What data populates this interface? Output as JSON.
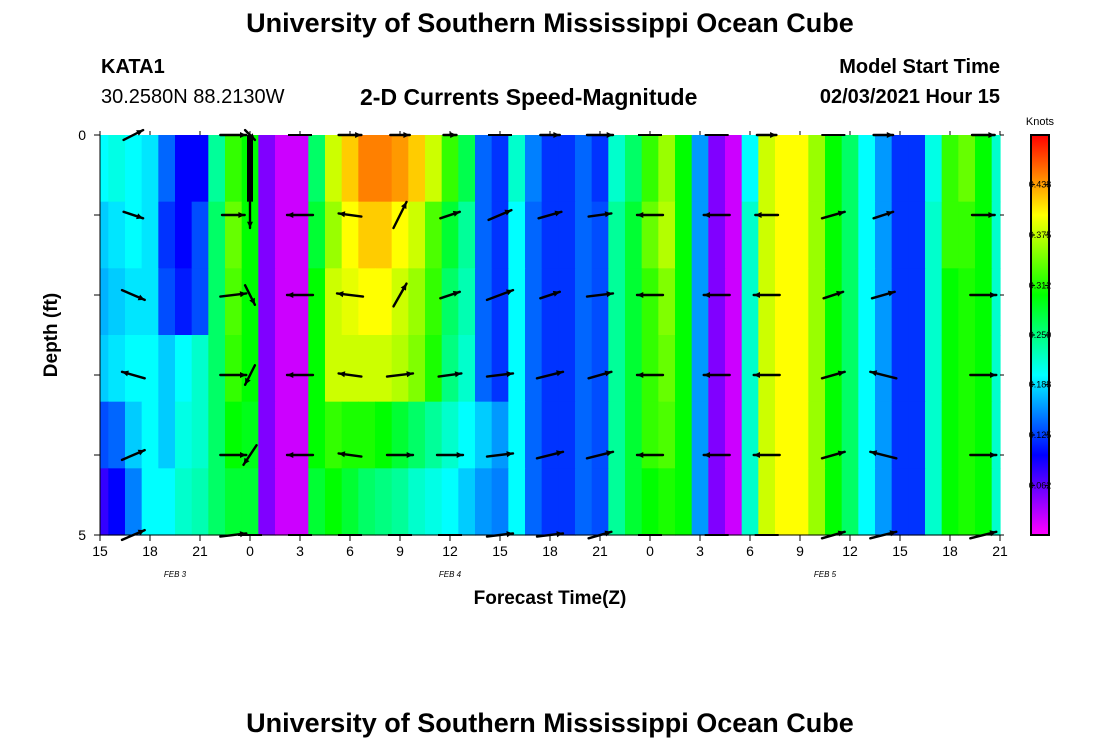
{
  "header": {
    "title": "University of Southern Mississippi Ocean Cube",
    "station_id": "KATA1",
    "coordinates": "30.2580N 88.2130W",
    "subtitle": "2-D Currents Speed-Magnitude",
    "model_start_label": "Model Start Time",
    "model_start_value": "02/03/2021 Hour 15"
  },
  "footer": {
    "title": "University of Southern Mississippi Ocean Cube"
  },
  "chart_data": {
    "type": "heatmap",
    "title": "2-D Currents Speed-Magnitude",
    "xlabel": "Forecast Time(Z)",
    "ylabel": "Depth (ft)",
    "x_unit": "hours since model start",
    "xlim": [
      0,
      54
    ],
    "x_tick_values": [
      0,
      3,
      6,
      9,
      12,
      15,
      18,
      21,
      24,
      27,
      30,
      33,
      36,
      39,
      42,
      45,
      48,
      51,
      54
    ],
    "x_tick_labels": [
      "15",
      "18",
      "21",
      "0",
      "3",
      "6",
      "9",
      "12",
      "15",
      "18",
      "21",
      "0",
      "3",
      "6",
      "9",
      "12",
      "15",
      "18",
      "21"
    ],
    "date_labels": [
      {
        "x": 4.5,
        "text": "FEB 3"
      },
      {
        "x": 21,
        "text": "FEB 4"
      },
      {
        "x": 43.5,
        "text": "FEB 5"
      }
    ],
    "ylim": [
      0,
      5
    ],
    "y_tick_values": [
      0,
      1,
      2,
      3,
      4,
      5
    ],
    "y_tick_labels": [
      "0",
      "",
      "",
      "",
      "",
      "5"
    ],
    "depth_levels": [
      0,
      1,
      2,
      3,
      4,
      5
    ],
    "speed_colorbar": {
      "units": "Knots",
      "range": [
        0.0,
        0.5
      ],
      "tick_values": [
        0.062,
        0.125,
        0.188,
        0.25,
        0.312,
        0.375,
        0.438
      ],
      "tick_labels": [
        "0.062",
        "0.125",
        "0.188",
        "0.250",
        "0.312",
        "0.375",
        "0.438"
      ]
    },
    "time_hours": [
      0,
      1,
      2,
      3,
      4,
      5,
      6,
      7,
      8,
      9,
      10,
      11,
      12,
      13,
      14,
      15,
      16,
      17,
      18,
      19,
      20,
      21,
      22,
      23,
      24,
      25,
      26,
      27,
      28,
      29,
      30,
      31,
      32,
      33,
      34,
      35,
      36,
      37,
      38,
      39,
      40,
      41,
      42,
      43,
      44,
      45,
      46,
      47,
      48,
      49,
      50,
      51,
      52,
      53,
      54
    ],
    "speed_knots": [
      [
        0.2,
        0.21,
        0.2,
        0.19,
        0.14,
        0.1,
        0.1,
        0.24,
        0.32,
        0.3,
        0.05,
        0.02,
        0.02,
        0.26,
        0.38,
        0.42,
        0.45,
        0.45,
        0.44,
        0.42,
        0.38,
        0.32,
        0.27,
        0.14,
        0.12,
        0.22,
        0.15,
        0.12,
        0.12,
        0.14,
        0.12,
        0.22,
        0.26,
        0.32,
        0.36,
        0.3,
        0.16,
        0.05,
        0.02,
        0.2,
        0.38,
        0.4,
        0.4,
        0.36,
        0.3,
        0.26,
        0.2,
        0.16,
        0.12,
        0.12,
        0.21,
        0.32,
        0.34,
        0.3,
        0.22
      ],
      [
        0.18,
        0.19,
        0.2,
        0.19,
        0.12,
        0.1,
        0.13,
        0.26,
        0.34,
        0.3,
        0.05,
        0.02,
        0.02,
        0.28,
        0.36,
        0.4,
        0.42,
        0.42,
        0.4,
        0.38,
        0.33,
        0.28,
        0.24,
        0.14,
        0.12,
        0.2,
        0.14,
        0.12,
        0.12,
        0.14,
        0.13,
        0.24,
        0.28,
        0.34,
        0.37,
        0.3,
        0.16,
        0.05,
        0.02,
        0.22,
        0.38,
        0.4,
        0.4,
        0.36,
        0.3,
        0.26,
        0.2,
        0.16,
        0.12,
        0.12,
        0.22,
        0.32,
        0.32,
        0.3,
        0.22
      ],
      [
        0.17,
        0.18,
        0.19,
        0.19,
        0.13,
        0.11,
        0.13,
        0.26,
        0.33,
        0.3,
        0.05,
        0.02,
        0.02,
        0.3,
        0.38,
        0.39,
        0.4,
        0.4,
        0.38,
        0.36,
        0.32,
        0.26,
        0.23,
        0.14,
        0.12,
        0.2,
        0.14,
        0.12,
        0.12,
        0.14,
        0.13,
        0.24,
        0.28,
        0.32,
        0.35,
        0.3,
        0.16,
        0.05,
        0.02,
        0.22,
        0.38,
        0.4,
        0.4,
        0.36,
        0.3,
        0.26,
        0.2,
        0.16,
        0.12,
        0.12,
        0.22,
        0.3,
        0.31,
        0.3,
        0.22
      ],
      [
        0.18,
        0.19,
        0.2,
        0.2,
        0.18,
        0.2,
        0.22,
        0.26,
        0.32,
        0.3,
        0.05,
        0.02,
        0.02,
        0.3,
        0.38,
        0.38,
        0.38,
        0.38,
        0.37,
        0.35,
        0.31,
        0.25,
        0.22,
        0.14,
        0.12,
        0.2,
        0.14,
        0.12,
        0.12,
        0.14,
        0.13,
        0.24,
        0.28,
        0.32,
        0.34,
        0.3,
        0.16,
        0.05,
        0.02,
        0.22,
        0.38,
        0.4,
        0.4,
        0.36,
        0.3,
        0.26,
        0.2,
        0.16,
        0.12,
        0.12,
        0.22,
        0.3,
        0.31,
        0.3,
        0.22
      ],
      [
        0.13,
        0.14,
        0.18,
        0.2,
        0.18,
        0.21,
        0.22,
        0.26,
        0.3,
        0.29,
        0.05,
        0.02,
        0.02,
        0.3,
        0.32,
        0.31,
        0.31,
        0.3,
        0.28,
        0.26,
        0.24,
        0.22,
        0.2,
        0.18,
        0.16,
        0.2,
        0.14,
        0.12,
        0.12,
        0.14,
        0.13,
        0.24,
        0.28,
        0.32,
        0.33,
        0.3,
        0.16,
        0.05,
        0.02,
        0.22,
        0.38,
        0.4,
        0.4,
        0.36,
        0.3,
        0.26,
        0.2,
        0.16,
        0.12,
        0.12,
        0.22,
        0.3,
        0.31,
        0.3,
        0.22
      ],
      [
        0.08,
        0.1,
        0.15,
        0.2,
        0.2,
        0.22,
        0.23,
        0.26,
        0.28,
        0.28,
        0.05,
        0.02,
        0.02,
        0.28,
        0.3,
        0.28,
        0.26,
        0.25,
        0.24,
        0.22,
        0.21,
        0.2,
        0.18,
        0.16,
        0.15,
        0.2,
        0.14,
        0.12,
        0.12,
        0.14,
        0.13,
        0.24,
        0.28,
        0.3,
        0.31,
        0.3,
        0.16,
        0.05,
        0.02,
        0.22,
        0.38,
        0.4,
        0.4,
        0.36,
        0.3,
        0.26,
        0.2,
        0.16,
        0.12,
        0.12,
        0.22,
        0.3,
        0.31,
        0.3,
        0.22
      ]
    ],
    "vector_depths": [
      0,
      1,
      2,
      3,
      4,
      5
    ],
    "vector_times": [
      2,
      8,
      9,
      12,
      15,
      18,
      21,
      24,
      27,
      30,
      33,
      37,
      40,
      44,
      47,
      53
    ],
    "vector_u": [
      [
        0.3,
        0.4,
        0.15,
        0.0,
        0.35,
        0.3,
        0.2,
        0.0,
        0.3,
        0.4,
        0.0,
        0.0,
        0.3,
        0.0,
        0.3,
        0.35
      ],
      [
        0.3,
        0.35,
        0.0,
        -0.4,
        -0.35,
        0.2,
        0.3,
        0.35,
        0.35,
        0.35,
        -0.4,
        -0.4,
        -0.35,
        0.35,
        0.3,
        0.35
      ],
      [
        0.35,
        0.4,
        0.15,
        -0.4,
        -0.4,
        0.2,
        0.3,
        0.4,
        0.3,
        0.4,
        -0.4,
        -0.4,
        -0.4,
        0.3,
        0.35,
        0.4
      ],
      [
        -0.35,
        0.4,
        -0.15,
        -0.4,
        -0.35,
        0.4,
        0.35,
        0.4,
        0.4,
        0.35,
        -0.4,
        -0.4,
        -0.4,
        0.35,
        -0.4,
        0.4
      ],
      [
        0.35,
        0.4,
        -0.2,
        -0.4,
        -0.35,
        0.4,
        0.4,
        0.4,
        0.4,
        0.4,
        -0.4,
        -0.4,
        -0.4,
        0.35,
        -0.4,
        0.4
      ],
      [
        0.35,
        0.4,
        0.0,
        0.0,
        0.0,
        0.0,
        0.0,
        0.4,
        0.4,
        0.35,
        0.0,
        0.0,
        0.0,
        0.35,
        0.4,
        0.4
      ]
    ],
    "vector_v": [
      [
        0.15,
        0.0,
        -0.15,
        0.0,
        0.0,
        0.0,
        0.0,
        0.0,
        0.0,
        0.0,
        0.0,
        0.0,
        0.0,
        0.0,
        0.0,
        0.0
      ],
      [
        -0.1,
        0.0,
        -0.4,
        0.0,
        0.05,
        0.4,
        0.1,
        0.15,
        0.1,
        0.05,
        0.0,
        0.0,
        0.0,
        0.1,
        0.1,
        0.0
      ],
      [
        -0.15,
        0.05,
        -0.3,
        0.0,
        0.05,
        0.35,
        0.1,
        0.15,
        0.1,
        0.05,
        0.0,
        0.0,
        0.0,
        0.1,
        0.1,
        0.0
      ],
      [
        0.1,
        0.0,
        -0.3,
        0.0,
        0.05,
        0.05,
        0.05,
        0.05,
        0.1,
        0.1,
        0.0,
        0.0,
        0.0,
        0.1,
        0.1,
        0.0
      ],
      [
        0.15,
        0.0,
        -0.3,
        0.0,
        0.05,
        0.0,
        0.0,
        0.05,
        0.1,
        0.1,
        0.0,
        0.0,
        0.0,
        0.1,
        0.1,
        0.0
      ],
      [
        0.15,
        0.05,
        0.0,
        0.0,
        0.0,
        0.0,
        0.0,
        0.05,
        0.05,
        0.1,
        0.0,
        0.0,
        0.0,
        0.1,
        0.1,
        0.1
      ]
    ]
  }
}
